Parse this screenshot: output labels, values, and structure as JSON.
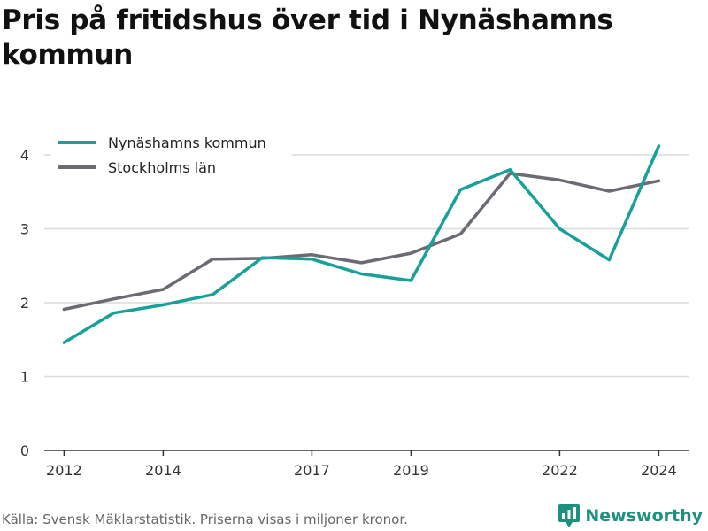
{
  "title": "Pris på fritidshus över tid i Nynäshamns kommun",
  "footer": {
    "source": "Källa: Svensk Mäklarstatistik. Priserna visas i miljoner kronor.",
    "brand": "Newsworthy",
    "brand_icon": "bar-chart-logo-icon"
  },
  "colors": {
    "Nynäshamns kommun": "#18a197",
    "Stockholms län": "#6c6b73",
    "grid": "#dcdcdc",
    "axis": "#333333"
  },
  "chart_data": {
    "type": "line",
    "title": "Pris på fritidshus över tid i Nynäshamns kommun",
    "xlabel": "",
    "ylabel": "",
    "x": [
      2012,
      2013,
      2014,
      2015,
      2016,
      2017,
      2018,
      2019,
      2020,
      2021,
      2022,
      2023,
      2024
    ],
    "x_ticks": [
      2012,
      2014,
      2017,
      2019,
      2022,
      2024
    ],
    "y_ticks": [
      0,
      1,
      2,
      3,
      4
    ],
    "xlim": [
      2011.6,
      2024.6
    ],
    "ylim": [
      0,
      4.3
    ],
    "grid": true,
    "legend_position": "top-left",
    "series": [
      {
        "name": "Nynäshamns kommun",
        "values": [
          1.46,
          1.86,
          1.97,
          2.11,
          2.61,
          2.59,
          2.39,
          2.3,
          3.53,
          3.8,
          3.0,
          2.58,
          4.12
        ]
      },
      {
        "name": "Stockholms län",
        "values": [
          1.91,
          2.05,
          2.18,
          2.59,
          2.6,
          2.65,
          2.54,
          2.67,
          2.93,
          3.75,
          3.66,
          3.51,
          3.65
        ]
      }
    ]
  }
}
